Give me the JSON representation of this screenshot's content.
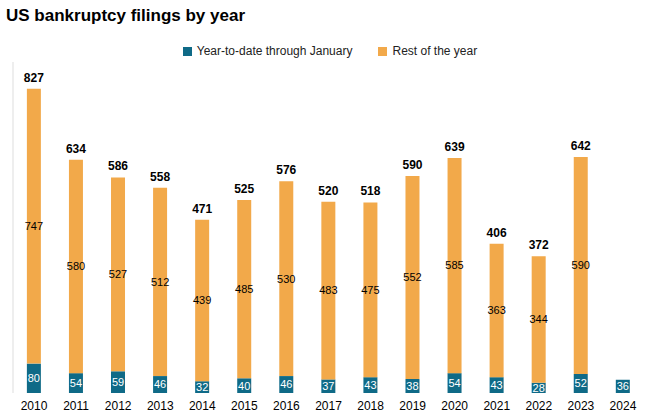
{
  "chart_data": {
    "type": "bar",
    "title": "US bankruptcy filings by year",
    "categories": [
      "2010",
      "2011",
      "2012",
      "2013",
      "2014",
      "2015",
      "2016",
      "2017",
      "2018",
      "2019",
      "2020",
      "2021",
      "2022",
      "2023",
      "2024"
    ],
    "series": [
      {
        "name": "Year-to-date through January",
        "color": "#0f6a87",
        "values": [
          80,
          54,
          59,
          46,
          32,
          40,
          46,
          37,
          43,
          38,
          54,
          43,
          28,
          52,
          36
        ]
      },
      {
        "name": "Rest of the year",
        "color": "#f2a94a",
        "values": [
          747,
          580,
          527,
          512,
          439,
          485,
          530,
          483,
          475,
          552,
          585,
          363,
          344,
          590,
          null
        ]
      }
    ],
    "totals": [
      827,
      634,
      586,
      558,
      471,
      525,
      576,
      520,
      518,
      590,
      639,
      406,
      372,
      642,
      null
    ],
    "ylim": [
      0,
      900
    ],
    "stacked": true,
    "data_labels": true,
    "legend": "top",
    "grid": false,
    "tick_labels": "x"
  }
}
